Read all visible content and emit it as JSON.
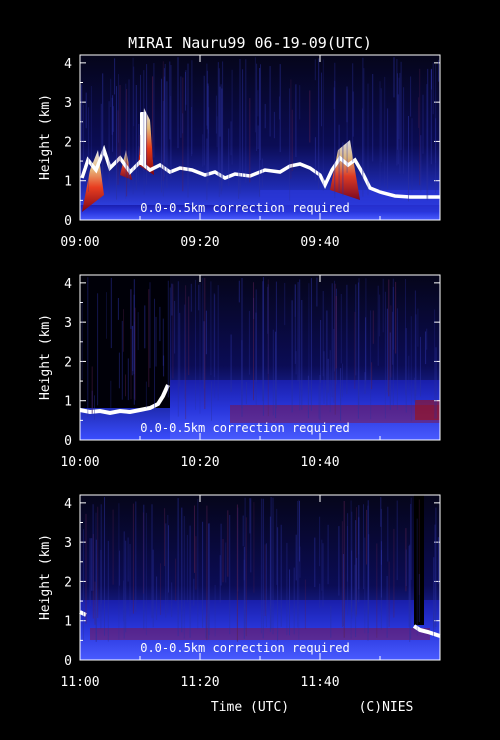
{
  "title": "MIRAI Nauru99 06-19-09(UTC)",
  "footer": {
    "xlabel": "Time (UTC)",
    "credit": "(C)NIES"
  },
  "colors": {
    "background": "#000000",
    "text": "#ffffff",
    "axis": "#ffffff"
  },
  "chart_data": [
    {
      "type": "heatmap",
      "ylabel": "Height (km)",
      "ylim": [
        0,
        4.2
      ],
      "yticks": [
        "0",
        "1",
        "2",
        "3",
        "4"
      ],
      "xlim": [
        "09:00",
        "10:00"
      ],
      "xticks": [
        "09:00",
        "09:20",
        "09:40"
      ],
      "annotation": "0.0-0.5km correction required",
      "cloud_base_km": [
        {
          "t": 0,
          "h": 0.9
        },
        {
          "t": 3,
          "h": 1.2
        },
        {
          "t": 6,
          "h": 1.0
        },
        {
          "t": 10,
          "h": 1.3
        },
        {
          "t": 14,
          "h": 1.4
        },
        {
          "t": 19,
          "h": 1.1
        },
        {
          "t": 24,
          "h": 1.0
        },
        {
          "t": 30,
          "h": 1.1
        },
        {
          "t": 36,
          "h": 1.2
        },
        {
          "t": 42,
          "h": 1.4
        },
        {
          "t": 46,
          "h": 1.2
        },
        {
          "t": 50,
          "h": 0.6
        },
        {
          "t": 55,
          "h": 0.45
        },
        {
          "t": 60,
          "h": 0.45
        }
      ]
    },
    {
      "type": "heatmap",
      "ylabel": "Height (km)",
      "ylim": [
        0,
        4.2
      ],
      "yticks": [
        "0",
        "1",
        "2",
        "3",
        "4"
      ],
      "xlim": [
        "10:00",
        "11:00"
      ],
      "xticks": [
        "10:00",
        "10:20",
        "10:40"
      ],
      "annotation": "0.0-0.5km correction required",
      "cloud_base_km": [
        {
          "t": 0,
          "h": 0.7
        },
        {
          "t": 4,
          "h": 0.6
        },
        {
          "t": 10,
          "h": 0.65
        },
        {
          "t": 13,
          "h": 1.1
        }
      ]
    },
    {
      "type": "heatmap",
      "ylabel": "Height (km)",
      "ylim": [
        0,
        4.2
      ],
      "yticks": [
        "0",
        "1",
        "2",
        "3",
        "4"
      ],
      "xlim": [
        "11:00",
        "12:00"
      ],
      "xticks": [
        "11:00",
        "11:20",
        "11:40"
      ],
      "annotation": "0.0-0.5km correction required",
      "cloud_base_km": [
        {
          "t": 0,
          "h": 1.1
        },
        {
          "t": 56,
          "h": 0.7
        },
        {
          "t": 60,
          "h": 0.6
        }
      ]
    }
  ]
}
